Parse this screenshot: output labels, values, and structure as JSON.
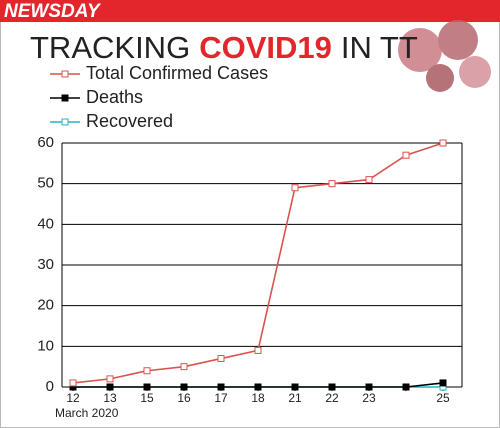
{
  "brand": "NEWSDAY",
  "chart_data": {
    "type": "line",
    "title_pre": "TRACKING",
    "title_highlight": "COVID19",
    "title_post": "IN TT",
    "x_label": "March 2020",
    "categories": [
      "12",
      "13",
      "15",
      "16",
      "17",
      "18",
      "21",
      "22",
      "23",
      null,
      "25"
    ],
    "series": [
      {
        "name": "Total Confirmed Cases",
        "color": "#d9534f",
        "marker": "#ffffff",
        "values": [
          1,
          2,
          4,
          5,
          7,
          9,
          49,
          50,
          51,
          57,
          60
        ]
      },
      {
        "name": "Deaths",
        "color": "#000000",
        "marker": "#000000",
        "values": [
          0,
          0,
          0,
          0,
          0,
          0,
          0,
          0,
          0,
          0,
          1
        ]
      },
      {
        "name": "Recovered",
        "color": "#22b5c8",
        "marker": "#ffffff",
        "values": [
          0,
          0,
          0,
          0,
          0,
          0,
          0,
          0,
          0,
          0,
          0
        ]
      }
    ],
    "ylim": [
      0,
      60
    ],
    "yticks": [
      0,
      10,
      20,
      30,
      40,
      50,
      60
    ],
    "grid": true
  }
}
